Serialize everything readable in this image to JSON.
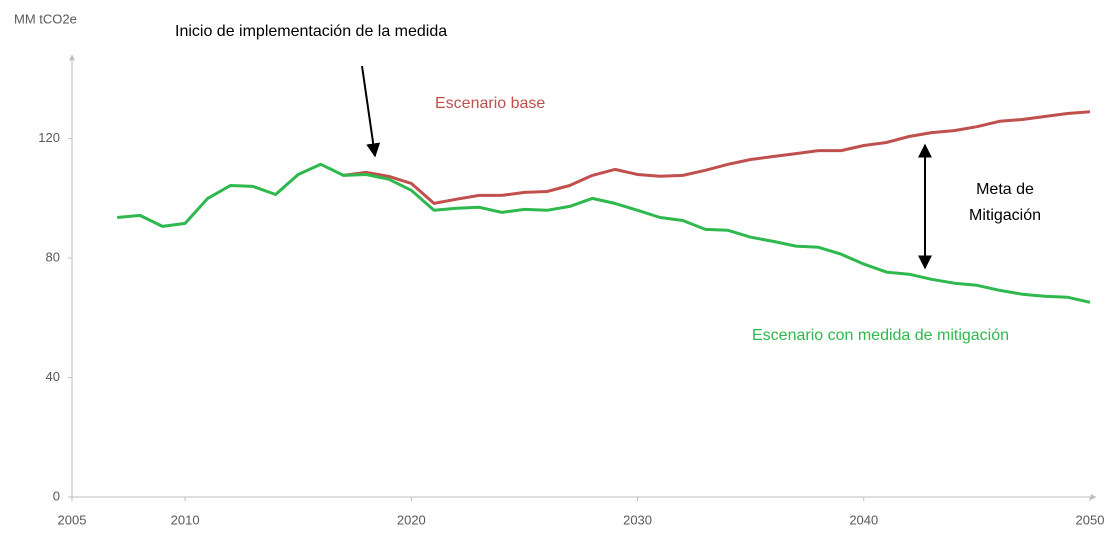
{
  "chart_data": {
    "type": "line",
    "y_label": "MM tCO2e",
    "annotations": [
      "Inicio de implementación de la medida",
      "Escenario base",
      "Escenario con medida de mitigación",
      "Meta de",
      "Mitigación"
    ],
    "x": [
      2007,
      2008,
      2009,
      2010,
      2011,
      2012,
      2013,
      2014,
      2015,
      2016,
      2017,
      2018,
      2019,
      2020,
      2021,
      2022,
      2023,
      2024,
      2025,
      2026,
      2027,
      2028,
      2029,
      2030,
      2031,
      2032,
      2033,
      2034,
      2035,
      2036,
      2037,
      2038,
      2039,
      2040,
      2041,
      2042,
      2043,
      2044,
      2045,
      2046,
      2047,
      2048,
      2049,
      2050
    ],
    "series": [
      {
        "name": "Escenario base",
        "color": "#c0504d",
        "values": [
          null,
          null,
          null,
          null,
          null,
          null,
          null,
          null,
          null,
          null,
          107.7,
          108.7,
          107.4,
          105,
          98.3,
          99.7,
          101,
          101,
          102,
          102.3,
          104.3,
          107.7,
          109.7,
          108,
          107.4,
          107.7,
          109.4,
          111.4,
          113,
          114,
          115,
          116,
          116,
          117.7,
          118.7,
          120.7,
          122,
          122.7,
          124,
          125.8,
          126.4,
          127.4,
          128.4,
          129
        ]
      },
      {
        "name": "Escenario con medida de mitigación",
        "color": "#2eb84e",
        "values": [
          93.6,
          94.3,
          90.6,
          91.6,
          100,
          104.3,
          104,
          101.3,
          108,
          111.4,
          107.7,
          108,
          106.4,
          102.7,
          96,
          96.7,
          97,
          95.3,
          96.3,
          96,
          97.3,
          100,
          98.3,
          96,
          93.6,
          92.6,
          89.6,
          89.3,
          87,
          85.6,
          84,
          83.6,
          81.3,
          78,
          75.3,
          74.6,
          72.9,
          71.6,
          70.9,
          69.2,
          67.9,
          67.2,
          66.9,
          65.2
        ]
      }
    ],
    "xlim": [
      2005,
      2050
    ],
    "xticks": [
      2005,
      2010,
      2020,
      2030,
      2040,
      2050
    ],
    "ylim": [
      0,
      148
    ],
    "yticks": [
      0,
      40,
      80,
      120
    ],
    "grid": false
  }
}
